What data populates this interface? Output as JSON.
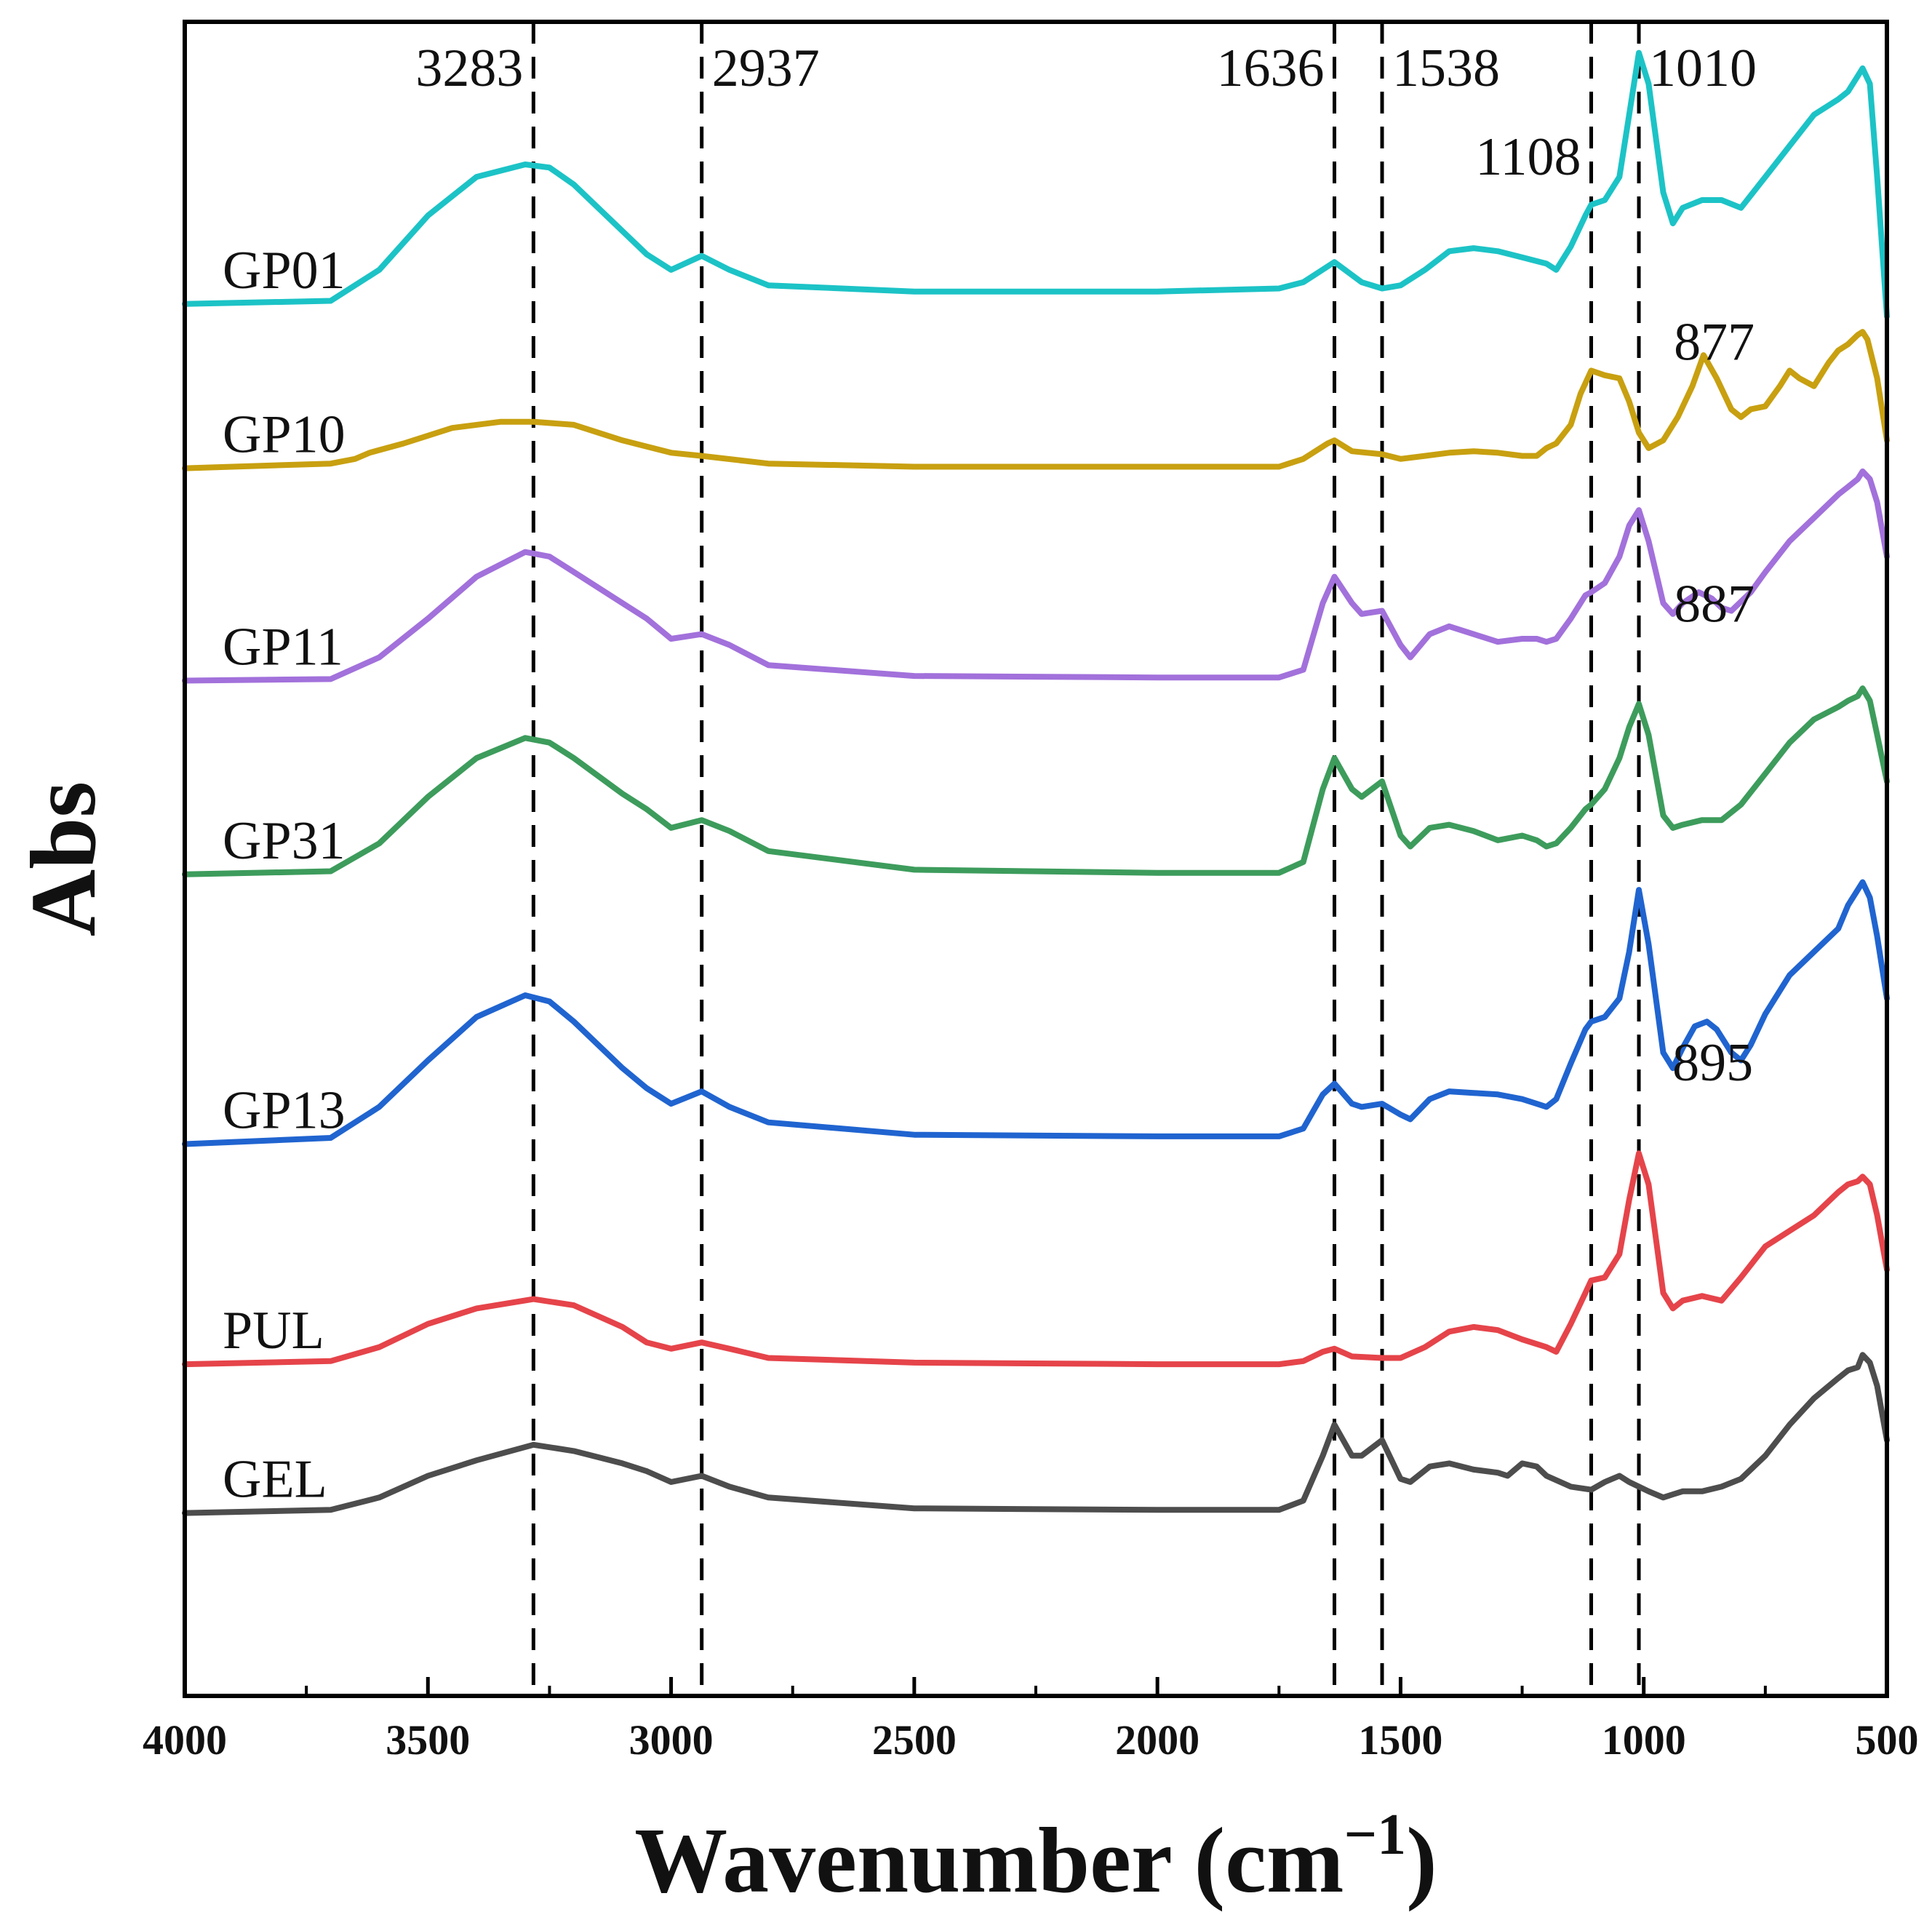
{
  "chart_data": {
    "type": "line",
    "title": "",
    "xlabel": "Wavenumber (cm",
    "xlabel_sup": "−1",
    "xlabel_close": ")",
    "ylabel": "Abs",
    "xlim": [
      4000,
      500
    ],
    "ylim": [
      0,
      10.8
    ],
    "xticks": [
      4000,
      3500,
      3000,
      2500,
      2000,
      1500,
      1000,
      500
    ],
    "xtick_labels": [
      "4000",
      "3500",
      "3000",
      "2500",
      "2000",
      "1500",
      "1000",
      "500"
    ],
    "minor_xticks": [
      3750,
      3250,
      2750,
      2250,
      1750,
      1250,
      750
    ],
    "y_axis_ticks": false,
    "grid": false,
    "legend": "none (series labelled directly at left)",
    "reference_lines": [
      {
        "x": 3283,
        "label": "3283",
        "label_side": "left",
        "label_level": "top"
      },
      {
        "x": 2937,
        "label": "2937",
        "label_side": "right",
        "label_level": "top"
      },
      {
        "x": 1636,
        "label": "1636",
        "label_side": "left",
        "label_level": "top"
      },
      {
        "x": 1538,
        "label": "1538",
        "label_side": "right",
        "label_level": "top"
      },
      {
        "x": 1108,
        "label": "1108",
        "label_side": "left",
        "label_level": "second"
      },
      {
        "x": 1010,
        "label": "1010",
        "label_side": "right",
        "label_level": "top"
      }
    ],
    "annotations": [
      {
        "text": "877",
        "x": 855,
        "y": 8.62
      },
      {
        "text": "887",
        "x": 855,
        "y": 6.93
      },
      {
        "text": "895",
        "x": 858,
        "y": 3.97
      }
    ],
    "series": [
      {
        "name": "GP01",
        "color": "#1cc3c6",
        "x": [
          4000,
          3700,
          3600,
          3500,
          3400,
          3300,
          3250,
          3200,
          3100,
          3050,
          3000,
          2937,
          2880,
          2800,
          2500,
          2000,
          1750,
          1700,
          1636,
          1580,
          1538,
          1500,
          1450,
          1400,
          1350,
          1300,
          1250,
          1200,
          1180,
          1150,
          1120,
          1108,
          1080,
          1050,
          1030,
          1010,
          990,
          960,
          940,
          920,
          880,
          840,
          800,
          750,
          700,
          650,
          600,
          580,
          560,
          550,
          535,
          520,
          500
        ],
        "y": [
          8.98,
          9.0,
          9.2,
          9.55,
          9.8,
          9.88,
          9.86,
          9.75,
          9.45,
          9.3,
          9.2,
          9.29,
          9.2,
          9.1,
          9.06,
          9.06,
          9.08,
          9.12,
          9.25,
          9.12,
          9.08,
          9.1,
          9.2,
          9.32,
          9.34,
          9.32,
          9.28,
          9.24,
          9.2,
          9.35,
          9.55,
          9.62,
          9.65,
          9.8,
          10.2,
          10.6,
          10.4,
          9.7,
          9.5,
          9.6,
          9.65,
          9.65,
          9.6,
          9.8,
          10.0,
          10.2,
          10.3,
          10.35,
          10.45,
          10.5,
          10.4,
          9.8,
          8.9
        ]
      },
      {
        "name": "GP10",
        "color": "#c8a010",
        "x": [
          4000,
          3700,
          3650,
          3620,
          3550,
          3450,
          3350,
          3283,
          3200,
          3100,
          3000,
          2937,
          2800,
          2500,
          2000,
          1750,
          1700,
          1650,
          1636,
          1600,
          1538,
          1500,
          1450,
          1400,
          1350,
          1300,
          1250,
          1220,
          1200,
          1180,
          1150,
          1130,
          1108,
          1080,
          1050,
          1030,
          1010,
          990,
          960,
          930,
          900,
          877,
          850,
          820,
          800,
          780,
          750,
          720,
          700,
          680,
          650,
          620,
          600,
          580,
          560,
          550,
          540,
          520,
          500
        ],
        "y": [
          7.92,
          7.95,
          7.98,
          8.02,
          8.08,
          8.18,
          8.22,
          8.22,
          8.2,
          8.1,
          8.02,
          8.0,
          7.95,
          7.93,
          7.93,
          7.93,
          7.98,
          8.08,
          8.1,
          8.03,
          8.01,
          7.98,
          8.0,
          8.02,
          8.03,
          8.02,
          8.0,
          8.0,
          8.05,
          8.08,
          8.2,
          8.4,
          8.55,
          8.52,
          8.5,
          8.35,
          8.15,
          8.05,
          8.1,
          8.25,
          8.45,
          8.65,
          8.5,
          8.3,
          8.25,
          8.3,
          8.32,
          8.45,
          8.55,
          8.5,
          8.45,
          8.6,
          8.68,
          8.72,
          8.78,
          8.8,
          8.75,
          8.5,
          8.1
        ]
      },
      {
        "name": "GP11",
        "color": "#a271db",
        "x": [
          4000,
          3700,
          3600,
          3500,
          3400,
          3300,
          3250,
          3200,
          3100,
          3050,
          3000,
          2937,
          2880,
          2800,
          2500,
          2000,
          1750,
          1700,
          1660,
          1636,
          1600,
          1580,
          1538,
          1500,
          1480,
          1440,
          1400,
          1350,
          1300,
          1250,
          1220,
          1200,
          1180,
          1150,
          1120,
          1108,
          1080,
          1050,
          1030,
          1010,
          990,
          960,
          940,
          920,
          887,
          860,
          840,
          820,
          780,
          750,
          700,
          650,
          600,
          580,
          560,
          550,
          535,
          520,
          500
        ],
        "y": [
          6.55,
          6.56,
          6.7,
          6.95,
          7.22,
          7.38,
          7.35,
          7.25,
          7.05,
          6.95,
          6.82,
          6.85,
          6.78,
          6.65,
          6.58,
          6.57,
          6.57,
          6.62,
          7.05,
          7.22,
          7.05,
          6.98,
          7.0,
          6.78,
          6.7,
          6.85,
          6.9,
          6.85,
          6.8,
          6.82,
          6.82,
          6.8,
          6.82,
          6.95,
          7.1,
          7.12,
          7.18,
          7.35,
          7.55,
          7.65,
          7.45,
          7.05,
          6.98,
          7.05,
          7.12,
          7.08,
          7.02,
          7.0,
          7.12,
          7.25,
          7.45,
          7.6,
          7.75,
          7.8,
          7.85,
          7.9,
          7.85,
          7.7,
          7.35
        ]
      },
      {
        "name": "GP31",
        "color": "#3d9c5c",
        "x": [
          4000,
          3700,
          3600,
          3500,
          3400,
          3300,
          3250,
          3200,
          3100,
          3050,
          3000,
          2937,
          2880,
          2800,
          2500,
          2000,
          1750,
          1700,
          1660,
          1636,
          1600,
          1580,
          1538,
          1500,
          1480,
          1440,
          1400,
          1350,
          1300,
          1250,
          1220,
          1200,
          1180,
          1150,
          1120,
          1108,
          1080,
          1050,
          1030,
          1010,
          990,
          960,
          940,
          920,
          880,
          840,
          800,
          750,
          700,
          650,
          600,
          580,
          560,
          550,
          535,
          520,
          500
        ],
        "y": [
          5.3,
          5.32,
          5.5,
          5.8,
          6.05,
          6.18,
          6.15,
          6.05,
          5.82,
          5.72,
          5.6,
          5.65,
          5.58,
          5.45,
          5.33,
          5.31,
          5.31,
          5.38,
          5.85,
          6.05,
          5.85,
          5.8,
          5.9,
          5.55,
          5.48,
          5.6,
          5.62,
          5.58,
          5.52,
          5.55,
          5.52,
          5.48,
          5.5,
          5.6,
          5.72,
          5.75,
          5.85,
          6.05,
          6.25,
          6.4,
          6.2,
          5.68,
          5.6,
          5.62,
          5.65,
          5.65,
          5.75,
          5.95,
          6.15,
          6.3,
          6.38,
          6.42,
          6.45,
          6.5,
          6.42,
          6.2,
          5.9
        ]
      },
      {
        "name": "GP13",
        "color": "#2064d0",
        "x": [
          4000,
          3700,
          3600,
          3500,
          3400,
          3300,
          3250,
          3200,
          3100,
          3050,
          3000,
          2937,
          2880,
          2800,
          2500,
          2000,
          1750,
          1700,
          1660,
          1636,
          1600,
          1580,
          1538,
          1500,
          1480,
          1440,
          1400,
          1350,
          1300,
          1250,
          1220,
          1200,
          1180,
          1150,
          1120,
          1108,
          1080,
          1050,
          1030,
          1010,
          990,
          960,
          940,
          920,
          895,
          870,
          850,
          820,
          800,
          780,
          750,
          700,
          650,
          600,
          580,
          560,
          550,
          535,
          520,
          500
        ],
        "y": [
          3.56,
          3.6,
          3.8,
          4.1,
          4.38,
          4.52,
          4.48,
          4.35,
          4.05,
          3.92,
          3.82,
          3.9,
          3.8,
          3.7,
          3.62,
          3.61,
          3.61,
          3.66,
          3.88,
          3.95,
          3.82,
          3.8,
          3.82,
          3.75,
          3.72,
          3.85,
          3.9,
          3.89,
          3.88,
          3.85,
          3.82,
          3.8,
          3.85,
          4.08,
          4.3,
          4.35,
          4.38,
          4.5,
          4.8,
          5.2,
          4.85,
          4.15,
          4.05,
          4.18,
          4.32,
          4.35,
          4.3,
          4.15,
          4.1,
          4.2,
          4.4,
          4.65,
          4.8,
          4.95,
          5.1,
          5.2,
          5.25,
          5.15,
          4.9,
          4.5
        ]
      },
      {
        "name": "PUL",
        "color": "#e5444a",
        "x": [
          4000,
          3700,
          3600,
          3500,
          3400,
          3283,
          3200,
          3100,
          3050,
          3000,
          2937,
          2880,
          2800,
          2500,
          2000,
          1750,
          1700,
          1660,
          1636,
          1600,
          1538,
          1500,
          1450,
          1400,
          1350,
          1300,
          1250,
          1200,
          1180,
          1150,
          1120,
          1108,
          1080,
          1050,
          1030,
          1010,
          990,
          960,
          940,
          920,
          880,
          840,
          800,
          750,
          700,
          650,
          600,
          580,
          560,
          550,
          535,
          520,
          500
        ],
        "y": [
          2.14,
          2.16,
          2.25,
          2.4,
          2.5,
          2.56,
          2.52,
          2.38,
          2.28,
          2.24,
          2.28,
          2.24,
          2.18,
          2.15,
          2.14,
          2.14,
          2.16,
          2.22,
          2.24,
          2.19,
          2.18,
          2.18,
          2.25,
          2.35,
          2.38,
          2.36,
          2.3,
          2.25,
          2.22,
          2.4,
          2.6,
          2.68,
          2.7,
          2.85,
          3.2,
          3.5,
          3.3,
          2.6,
          2.5,
          2.55,
          2.58,
          2.55,
          2.7,
          2.9,
          3.0,
          3.1,
          3.25,
          3.3,
          3.32,
          3.35,
          3.3,
          3.1,
          2.75
        ]
      },
      {
        "name": "GEL",
        "color": "#4d4d4d",
        "x": [
          4000,
          3700,
          3600,
          3500,
          3400,
          3283,
          3200,
          3100,
          3050,
          3000,
          2937,
          2880,
          2800,
          2500,
          2000,
          1750,
          1700,
          1660,
          1636,
          1600,
          1580,
          1538,
          1500,
          1480,
          1440,
          1400,
          1350,
          1300,
          1280,
          1250,
          1220,
          1200,
          1150,
          1108,
          1080,
          1050,
          1030,
          1010,
          990,
          960,
          940,
          920,
          880,
          840,
          800,
          750,
          700,
          650,
          600,
          580,
          560,
          550,
          535,
          520,
          500
        ],
        "y": [
          1.18,
          1.2,
          1.28,
          1.42,
          1.52,
          1.62,
          1.58,
          1.5,
          1.45,
          1.38,
          1.42,
          1.35,
          1.28,
          1.21,
          1.2,
          1.2,
          1.26,
          1.55,
          1.75,
          1.55,
          1.55,
          1.65,
          1.4,
          1.38,
          1.48,
          1.5,
          1.46,
          1.44,
          1.42,
          1.5,
          1.48,
          1.42,
          1.35,
          1.33,
          1.38,
          1.42,
          1.38,
          1.35,
          1.32,
          1.28,
          1.3,
          1.32,
          1.32,
          1.35,
          1.4,
          1.55,
          1.75,
          1.92,
          2.05,
          2.1,
          2.12,
          2.2,
          2.15,
          2.0,
          1.65
        ]
      }
    ]
  }
}
